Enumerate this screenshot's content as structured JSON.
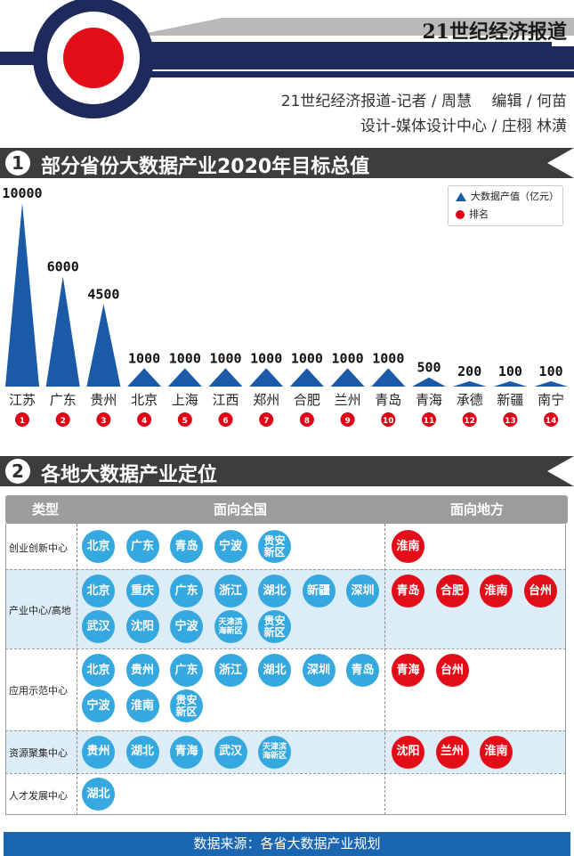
{
  "header": {
    "publication": "21世纪经济报道",
    "credit_line1": "21世纪经济报道-记者 / 周慧　 编辑 / 何苗",
    "credit_line2": "设计-媒体设计中心 / 庄栩  林潢"
  },
  "section1": {
    "number": "1",
    "title": "部分省份大数据产业2020年目标总值"
  },
  "section2": {
    "number": "2",
    "title": "各地大数据产业定位"
  },
  "colors": {
    "bar": "#1a5aa6",
    "rank": "#e00016",
    "chip_national": "#35a8e0",
    "chip_local": "#e30d1a",
    "section_bar": "#3d3d3d"
  },
  "chart_data": {
    "type": "bar",
    "mark": "triangle",
    "title": "部分省份大数据产业2020年目标总值",
    "categories": [
      "江苏",
      "广东",
      "贵州",
      "北京",
      "上海",
      "江西",
      "郑州",
      "合肥",
      "兰州",
      "青岛",
      "青海",
      "承德",
      "新疆",
      "南宁"
    ],
    "series": [
      {
        "name": "大数据产值（亿元）",
        "values": [
          10000,
          6000,
          4500,
          1000,
          1000,
          1000,
          1000,
          1000,
          1000,
          1000,
          500,
          200,
          100,
          100
        ]
      }
    ],
    "value_labels": [
      "10000",
      "6000",
      "4500",
      "1000",
      "1000",
      "1000",
      "1000",
      "1000",
      "1000",
      "1000",
      "500",
      "200",
      "100",
      "100"
    ],
    "ranks": [
      "1",
      "2",
      "3",
      "4",
      "5",
      "6",
      "7",
      "8",
      "9",
      "10",
      "11",
      "12",
      "13",
      "14"
    ],
    "rank_legend": "排名",
    "ylim": [
      0,
      10000
    ],
    "legend_position": "top-right",
    "grid": false
  },
  "table": {
    "headers": {
      "type": "类型",
      "national": "面向全国",
      "local": "面向地方"
    },
    "rows": [
      {
        "label": "创业创新中心",
        "national": [
          "北京",
          "广东",
          "青岛",
          "宁波",
          "贵安新区"
        ],
        "local": [
          "淮南"
        ]
      },
      {
        "label": "产业中心/高地",
        "national": [
          "北京",
          "重庆",
          "广东",
          "浙江",
          "湖北",
          "新疆",
          "深圳",
          "武汉",
          "沈阳",
          "宁波",
          "天津滨海新区",
          "贵安新区"
        ],
        "local": [
          "青岛",
          "合肥",
          "淮南",
          "台州"
        ]
      },
      {
        "label": "应用示范中心",
        "national": [
          "北京",
          "贵州",
          "广东",
          "浙江",
          "湖北",
          "深圳",
          "青岛",
          "宁波",
          "淮南",
          "贵安新区"
        ],
        "local": [
          "青海",
          "台州"
        ]
      },
      {
        "label": "资源聚集中心",
        "national": [
          "贵州",
          "湖北",
          "青海",
          "武汉",
          "天津滨海新区"
        ],
        "local": [
          "沈阳",
          "兰州",
          "淮南"
        ]
      },
      {
        "label": "人才发展中心",
        "national": [
          "湖北"
        ],
        "local": []
      }
    ]
  },
  "footer": {
    "source": "数据来源：各省大数据产业规划"
  }
}
